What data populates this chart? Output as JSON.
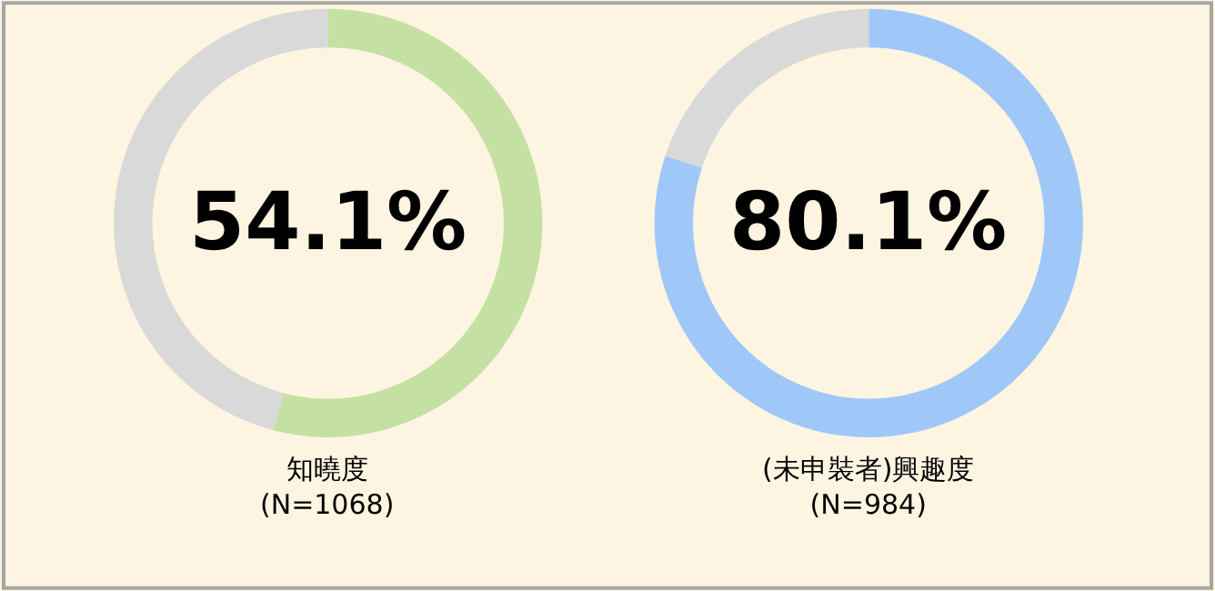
{
  "chart_data": [
    {
      "type": "donut",
      "categories": [
        null,
        null
      ],
      "values": [
        54.1,
        45.9
      ],
      "colors": [
        "#c5e0a3",
        "#d9d9d9"
      ],
      "annotations": [
        "54.1%"
      ],
      "xlabel": "知曉度\n(N=1068)"
    },
    {
      "type": "donut",
      "categories": [
        null,
        null
      ],
      "values": [
        80.1,
        19.9
      ],
      "colors": [
        "#9fc8f8",
        "#d9d9d9"
      ],
      "annotations": [
        "80.1%"
      ],
      "xlabel": "(未申裝者)興趣度\n(N=984)"
    }
  ]
}
